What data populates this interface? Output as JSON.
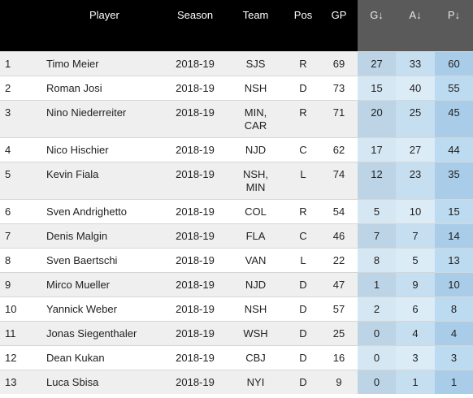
{
  "headers": {
    "rank": "",
    "player": "Player",
    "season": "Season",
    "team": "Team",
    "pos": "Pos",
    "gp": "GP",
    "g": "G↓",
    "a": "A↓",
    "p": "P↓"
  },
  "rows": [
    {
      "rank": "1",
      "player": "Timo Meier",
      "season": "2018-19",
      "team": "SJS",
      "pos": "R",
      "gp": "69",
      "g": "27",
      "a": "33",
      "p": "60"
    },
    {
      "rank": "2",
      "player": "Roman Josi",
      "season": "2018-19",
      "team": "NSH",
      "pos": "D",
      "gp": "73",
      "g": "15",
      "a": "40",
      "p": "55"
    },
    {
      "rank": "3",
      "player": "Nino Niederreiter",
      "season": "2018-19",
      "team": "MIN,\nCAR",
      "pos": "R",
      "gp": "71",
      "g": "20",
      "a": "25",
      "p": "45"
    },
    {
      "rank": "4",
      "player": "Nico Hischier",
      "season": "2018-19",
      "team": "NJD",
      "pos": "C",
      "gp": "62",
      "g": "17",
      "a": "27",
      "p": "44"
    },
    {
      "rank": "5",
      "player": "Kevin Fiala",
      "season": "2018-19",
      "team": "NSH,\nMIN",
      "pos": "L",
      "gp": "74",
      "g": "12",
      "a": "23",
      "p": "35"
    },
    {
      "rank": "6",
      "player": "Sven Andrighetto",
      "season": "2018-19",
      "team": "COL",
      "pos": "R",
      "gp": "54",
      "g": "5",
      "a": "10",
      "p": "15"
    },
    {
      "rank": "7",
      "player": "Denis Malgin",
      "season": "2018-19",
      "team": "FLA",
      "pos": "C",
      "gp": "46",
      "g": "7",
      "a": "7",
      "p": "14"
    },
    {
      "rank": "8",
      "player": "Sven Baertschi",
      "season": "2018-19",
      "team": "VAN",
      "pos": "L",
      "gp": "22",
      "g": "8",
      "a": "5",
      "p": "13"
    },
    {
      "rank": "9",
      "player": "Mirco Mueller",
      "season": "2018-19",
      "team": "NJD",
      "pos": "D",
      "gp": "47",
      "g": "1",
      "a": "9",
      "p": "10"
    },
    {
      "rank": "10",
      "player": "Yannick Weber",
      "season": "2018-19",
      "team": "NSH",
      "pos": "D",
      "gp": "57",
      "g": "2",
      "a": "6",
      "p": "8"
    },
    {
      "rank": "11",
      "player": "Jonas Siegenthaler",
      "season": "2018-19",
      "team": "WSH",
      "pos": "D",
      "gp": "25",
      "g": "0",
      "a": "4",
      "p": "4"
    },
    {
      "rank": "12",
      "player": "Dean Kukan",
      "season": "2018-19",
      "team": "CBJ",
      "pos": "D",
      "gp": "16",
      "g": "0",
      "a": "3",
      "p": "3"
    },
    {
      "rank": "13",
      "player": "Luca Sbisa",
      "season": "2018-19",
      "team": "NYI",
      "pos": "D",
      "gp": "9",
      "g": "0",
      "a": "1",
      "p": "1"
    }
  ]
}
